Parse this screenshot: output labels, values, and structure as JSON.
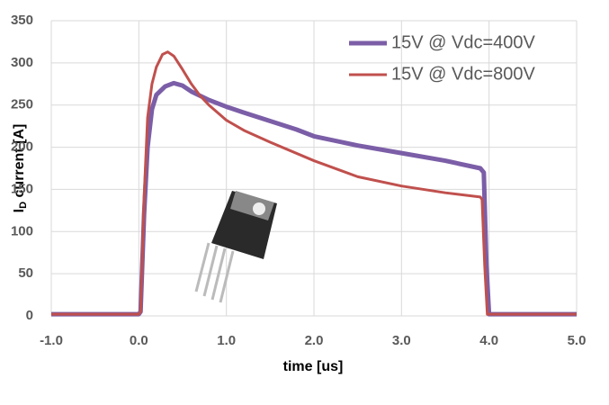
{
  "chart_data": {
    "type": "line",
    "xlabel": "time [us]",
    "ylabel": {
      "text": "I",
      "subscript": "D",
      "rest": " current [A]"
    },
    "xlim": [
      -1,
      5
    ],
    "ylim": [
      0,
      350
    ],
    "xticks": [
      {
        "value": -1,
        "label": "-1.0"
      },
      {
        "value": 0,
        "label": "0.0"
      },
      {
        "value": 1,
        "label": "1.0"
      },
      {
        "value": 2,
        "label": "2.0"
      },
      {
        "value": 3,
        "label": "3.0"
      },
      {
        "value": 4,
        "label": "4.0"
      },
      {
        "value": 5,
        "label": "5.0"
      }
    ],
    "yticks": [
      0,
      50,
      100,
      150,
      200,
      250,
      300,
      350
    ],
    "grid": true,
    "legend": "upper right",
    "series": [
      {
        "name": "15V @ Vdc=400V",
        "color": "#7b5ea7",
        "width": 5,
        "x": [
          -1,
          0,
          0.02,
          0.06,
          0.1,
          0.15,
          0.2,
          0.3,
          0.4,
          0.5,
          0.6,
          0.8,
          1.0,
          1.2,
          1.5,
          1.8,
          2.0,
          2.5,
          3.0,
          3.5,
          3.9,
          3.94,
          3.97,
          4.0,
          4.2,
          5
        ],
        "values": [
          2,
          2,
          5,
          120,
          200,
          245,
          262,
          272,
          276,
          273,
          266,
          256,
          248,
          241,
          231,
          221,
          213,
          202,
          193,
          184,
          175,
          170,
          60,
          2,
          2,
          2
        ]
      },
      {
        "name": "15V @ Vdc=800V",
        "color": "#c0504d",
        "width": 3,
        "x": [
          -1,
          0,
          0.02,
          0.06,
          0.1,
          0.15,
          0.2,
          0.27,
          0.33,
          0.4,
          0.5,
          0.6,
          0.7,
          0.8,
          1.0,
          1.2,
          1.5,
          2.0,
          2.5,
          3.0,
          3.5,
          3.9,
          3.92,
          3.95,
          3.98,
          4.2,
          5
        ],
        "values": [
          2,
          2,
          5,
          140,
          235,
          275,
          295,
          310,
          313,
          308,
          292,
          275,
          261,
          250,
          232,
          220,
          206,
          184,
          165,
          154,
          146,
          141,
          138,
          60,
          2,
          2,
          2
        ]
      }
    ]
  }
}
